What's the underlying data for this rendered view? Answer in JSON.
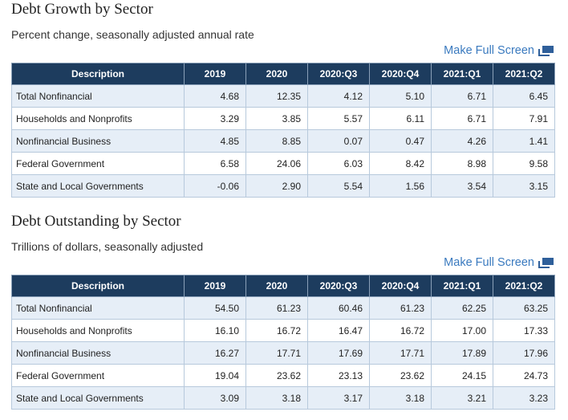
{
  "sections": [
    {
      "title": "Debt Growth by Sector",
      "subtitle": "Percent change, seasonally adjusted annual rate",
      "link": "Make Full Screen",
      "table": {
        "header": [
          "Description",
          "2019",
          "2020",
          "2020:Q3",
          "2020:Q4",
          "2021:Q1",
          "2021:Q2"
        ],
        "rows": [
          [
            "Total Nonfinancial",
            "4.68",
            "12.35",
            "4.12",
            "5.10",
            "6.71",
            "6.45"
          ],
          [
            "Households and Nonprofits",
            "3.29",
            "3.85",
            "5.57",
            "6.11",
            "6.71",
            "7.91"
          ],
          [
            "Nonfinancial Business",
            "4.85",
            "8.85",
            "0.07",
            "0.47",
            "4.26",
            "1.41"
          ],
          [
            "Federal Government",
            "6.58",
            "24.06",
            "6.03",
            "8.42",
            "8.98",
            "9.58"
          ],
          [
            "State and Local Governments",
            "-0.06",
            "2.90",
            "5.54",
            "1.56",
            "3.54",
            "3.15"
          ]
        ]
      }
    },
    {
      "title": "Debt Outstanding by Sector",
      "subtitle": "Trillions of dollars, seasonally adjusted",
      "link": "Make Full Screen",
      "table": {
        "header": [
          "Description",
          "2019",
          "2020",
          "2020:Q3",
          "2020:Q4",
          "2021:Q1",
          "2021:Q2"
        ],
        "rows": [
          [
            "Total Nonfinancial",
            "54.50",
            "61.23",
            "60.46",
            "61.23",
            "62.25",
            "63.25"
          ],
          [
            "Households and Nonprofits",
            "16.10",
            "16.72",
            "16.47",
            "16.72",
            "17.00",
            "17.33"
          ],
          [
            "Nonfinancial Business",
            "16.27",
            "17.71",
            "17.69",
            "17.71",
            "17.89",
            "17.96"
          ],
          [
            "Federal Government",
            "19.04",
            "23.62",
            "23.13",
            "23.62",
            "24.15",
            "24.73"
          ],
          [
            "State and Local Governments",
            "3.09",
            "3.18",
            "3.17",
            "3.18",
            "3.21",
            "3.23"
          ]
        ]
      }
    }
  ]
}
